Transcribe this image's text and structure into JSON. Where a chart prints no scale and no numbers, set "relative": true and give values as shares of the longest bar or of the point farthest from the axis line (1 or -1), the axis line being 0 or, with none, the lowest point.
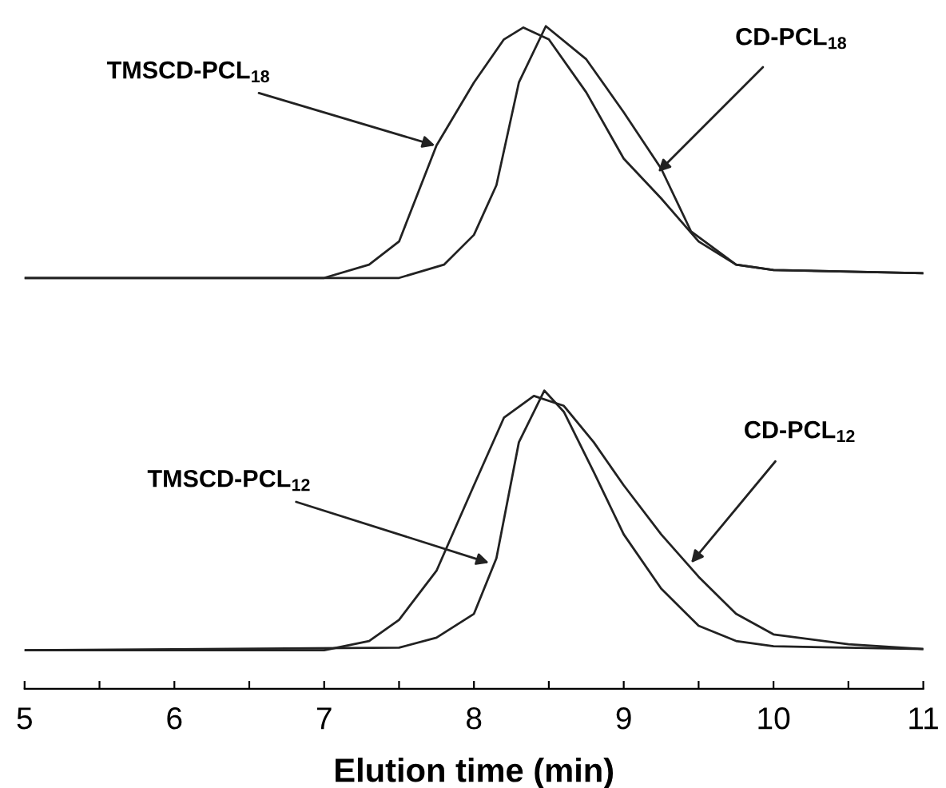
{
  "chart_data": {
    "type": "line",
    "relative": true,
    "xlabel": "Elution time (min)",
    "xlim": [
      5,
      11
    ],
    "xticks": [
      5,
      {
        "value": 5.5,
        "label": null
      },
      6,
      {
        "value": 6.5,
        "label": null
      },
      7,
      {
        "value": 7.5,
        "label": null
      },
      8,
      {
        "value": 8.5,
        "label": null
      },
      9,
      {
        "value": 9.5,
        "label": null
      },
      10,
      {
        "value": 10.5,
        "label": null
      },
      11
    ],
    "grid": false,
    "marker": "none",
    "line_style": "solid",
    "tick_labels": "x",
    "series": [
      {
        "color": "#222222",
        "x": [
          5,
          7,
          7.3,
          7.5,
          7.75,
          8.0,
          8.2,
          8.33,
          8.5,
          8.75,
          9.0,
          9.25,
          9.5,
          9.75,
          10,
          11
        ],
        "values": [
          0.62,
          0.62,
          0.64,
          0.675,
          0.82,
          0.915,
          0.98,
          0.998,
          0.98,
          0.9,
          0.8,
          0.74,
          0.675,
          0.64,
          0.632,
          0.627
        ]
      },
      {
        "color": "#222222",
        "x": [
          5,
          7.5,
          7.8,
          8.0,
          8.15,
          8.3,
          8.48,
          8.75,
          9.0,
          9.25,
          9.45,
          9.75,
          10,
          11
        ],
        "values": [
          0.62,
          0.62,
          0.64,
          0.685,
          0.76,
          0.915,
          1.0,
          0.95,
          0.87,
          0.785,
          0.69,
          0.64,
          0.632,
          0.627
        ]
      },
      {
        "color": "#222222",
        "x": [
          5,
          7.0,
          7.3,
          7.5,
          7.75,
          8.0,
          8.2,
          8.4,
          8.6,
          8.8,
          9.0,
          9.25,
          9.5,
          9.75,
          10,
          10.5,
          11
        ],
        "values": [
          0.058,
          0.058,
          0.072,
          0.104,
          0.178,
          0.307,
          0.409,
          0.442,
          0.427,
          0.372,
          0.307,
          0.233,
          0.169,
          0.113,
          0.082,
          0.067,
          0.06
        ]
      },
      {
        "color": "#222222",
        "x": [
          5,
          7.5,
          7.75,
          8.0,
          8.15,
          8.3,
          8.47,
          8.6,
          8.8,
          9.0,
          9.25,
          9.5,
          9.75,
          10,
          11
        ],
        "values": [
          0.058,
          0.062,
          0.077,
          0.113,
          0.197,
          0.372,
          0.45,
          0.418,
          0.327,
          0.233,
          0.151,
          0.095,
          0.072,
          0.064,
          0.06
        ]
      }
    ],
    "annotations": [
      {
        "text": "TMSCD-PCL$_{18}$",
        "x": 7.74,
        "y": 0.82
      },
      {
        "text": "CD-PCL$_{18}$",
        "x": 9.23,
        "y": 0.78
      },
      {
        "text": "TMSCD-PCL$_{12}$",
        "x": 8.1,
        "y": 0.19
      },
      {
        "text": "CD-PCL$_{12}$",
        "x": 9.45,
        "y": 0.19
      }
    ]
  }
}
